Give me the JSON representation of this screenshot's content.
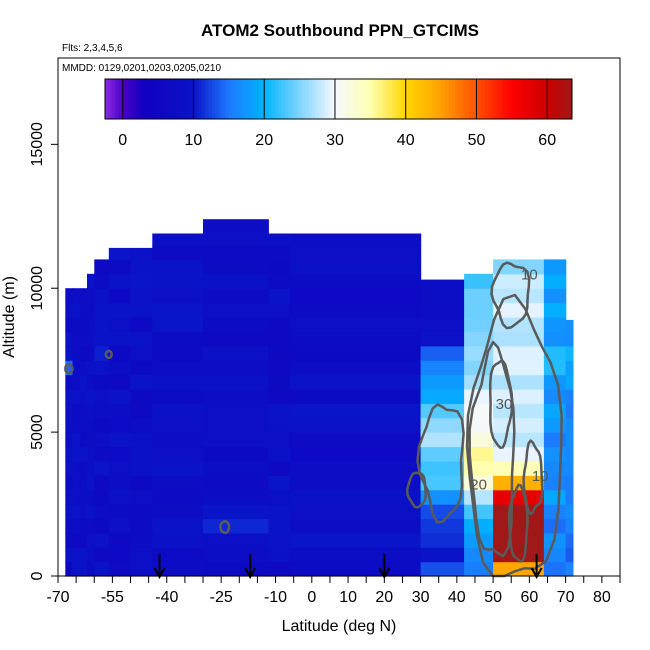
{
  "chart_data": {
    "type": "heatmap",
    "title": "ATOM2 Southbound PPN_GTCIMS",
    "subtitle_flights": "Flts: 2,3,4,5,6",
    "subtitle_dates": "MMDD: 0129,0201,0203,0205,0210",
    "xlabel": "Latitude (deg N)",
    "ylabel": "Altitude (m)",
    "xlim": [
      -70,
      85
    ],
    "ylim": [
      0,
      18000
    ],
    "x_ticks": [
      -70,
      -55,
      -40,
      -25,
      -10,
      0,
      10,
      20,
      30,
      40,
      50,
      60,
      70,
      80
    ],
    "x_minor_ticks": [
      -65,
      -60,
      -50,
      -45,
      -35,
      -30,
      -20,
      -15,
      -5,
      5,
      15,
      25,
      35,
      45,
      55,
      65,
      75,
      85
    ],
    "y_ticks": [
      0,
      5000,
      10000,
      15000
    ],
    "colorbar": {
      "range": [
        -2.5,
        63.5
      ],
      "ticks": [
        0,
        10,
        20,
        30,
        40,
        50,
        60
      ],
      "stops": [
        {
          "v": -2.5,
          "c": "#8a2be2"
        },
        {
          "v": 0,
          "c": "#4b00c8"
        },
        {
          "v": 3,
          "c": "#1100c0"
        },
        {
          "v": 10,
          "c": "#0a14c8"
        },
        {
          "v": 15,
          "c": "#1e78ff"
        },
        {
          "v": 20,
          "c": "#00b4ff"
        },
        {
          "v": 25,
          "c": "#7fd4ff"
        },
        {
          "v": 30,
          "c": "#f5f8ff"
        },
        {
          "v": 35,
          "c": "#ffffb0"
        },
        {
          "v": 40,
          "c": "#ffd700"
        },
        {
          "v": 45,
          "c": "#ffa000"
        },
        {
          "v": 50,
          "c": "#ff5000"
        },
        {
          "v": 55,
          "c": "#ff0000"
        },
        {
          "v": 60,
          "c": "#cc0000"
        },
        {
          "v": 63.5,
          "c": "#a01818"
        }
      ]
    },
    "contour_levels": [
      10,
      20,
      30
    ],
    "contour_labels": [
      {
        "text": "30",
        "lat": 53,
        "alt": 5800
      },
      {
        "text": "20",
        "lat": 46,
        "alt": 3000
      },
      {
        "text": "10",
        "lat": 63,
        "alt": 3300
      },
      {
        "text": "10",
        "lat": 60,
        "alt": 10300
      }
    ],
    "columns": [
      {
        "lat0": -68,
        "lat1": -66,
        "top": 10000
      },
      {
        "lat0": -66,
        "lat1": -64,
        "top": 10000
      },
      {
        "lat0": -64,
        "lat1": -62,
        "top": 10000
      },
      {
        "lat0": -62,
        "lat1": -60,
        "top": 10500
      },
      {
        "lat0": -60,
        "lat1": -56,
        "top": 11000
      },
      {
        "lat0": -56,
        "lat1": -50,
        "top": 11400
      },
      {
        "lat0": -50,
        "lat1": -44,
        "top": 11400
      },
      {
        "lat0": -44,
        "lat1": -30,
        "top": 11900
      },
      {
        "lat0": -30,
        "lat1": -12,
        "top": 12400
      },
      {
        "lat0": -12,
        "lat1": -6,
        "top": 11900
      },
      {
        "lat0": -6,
        "lat1": 30,
        "top": 11900
      },
      {
        "lat0": 30,
        "lat1": 42,
        "top": 10300
      },
      {
        "lat0": 42,
        "lat1": 50,
        "top": 10500
      },
      {
        "lat0": 50,
        "lat1": 64,
        "top": 11000
      },
      {
        "lat0": 64,
        "lat1": 70,
        "top": 11000
      },
      {
        "lat0": 70,
        "lat1": 72,
        "top": 8900
      }
    ],
    "hotspots": [
      {
        "lat": 57,
        "alt": 2000,
        "sx": 2.0,
        "sy": 900,
        "amp": 46
      },
      {
        "lat": 58,
        "alt": 800,
        "sx": 3.0,
        "sy": 700,
        "amp": 33
      },
      {
        "lat": 29,
        "alt": 3000,
        "sx": 3.0,
        "sy": 500,
        "amp": 36
      },
      {
        "lat": 32,
        "alt": 3300,
        "sx": 2.0,
        "sy": 400,
        "amp": 14
      },
      {
        "lat": 36,
        "alt": 4800,
        "sx": 6.0,
        "sy": 1400,
        "amp": 14
      },
      {
        "lat": 52,
        "alt": 5700,
        "sx": 5.0,
        "sy": 2400,
        "amp": 16
      },
      {
        "lat": 48,
        "alt": 3700,
        "sx": 5.0,
        "sy": 1000,
        "amp": 11
      },
      {
        "lat": 55,
        "alt": 9800,
        "sx": 6.0,
        "sy": 1300,
        "amp": 9
      },
      {
        "lat": 62,
        "alt": 3400,
        "sx": 3.0,
        "sy": 1100,
        "amp": 10
      },
      {
        "lat": -24,
        "alt": 1700,
        "sx": 1.5,
        "sy": 250,
        "amp": 14
      },
      {
        "lat": -56,
        "alt": 7700,
        "sx": 1.0,
        "sy": 150,
        "amp": 8
      },
      {
        "lat": -67,
        "alt": 7200,
        "sx": 1.0,
        "sy": 200,
        "amp": 7
      },
      {
        "lat": 10,
        "alt": 8100,
        "sx": 0.8,
        "sy": 200,
        "amp": 7
      }
    ],
    "arrows": [
      -42,
      -17,
      20,
      62
    ]
  }
}
